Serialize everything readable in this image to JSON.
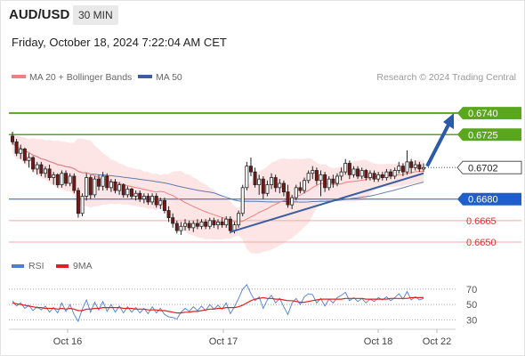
{
  "header": {
    "pair": "AUD/USD",
    "timeframe": "30 MIN",
    "datetime": "Friday, October 18, 2024 7:22:04 AM CET"
  },
  "legend": {
    "ma20": "MA 20 + Bollinger Bands",
    "ma50": "MA 50",
    "credit": "Research © 2024 Trading Central"
  },
  "colors": {
    "green": "#5aa61c",
    "blue": "#1f5fcc",
    "red": "#e03030",
    "ma20": "#f08080",
    "ma50": "#3b5f9e",
    "bollinger": "#fde0e0",
    "rsi": "#4a7fd8",
    "rsi_ma": "#e02020",
    "up_candle": "#ffffff",
    "down_candle": "#7a1515"
  },
  "chart_data": {
    "type": "candlestick",
    "price_panel": {
      "ylim": [
        0.6645,
        0.676
      ],
      "levels": [
        {
          "value": 0.674,
          "label": "0.6740",
          "kind": "resistance",
          "style": "thick-green"
        },
        {
          "value": 0.6725,
          "label": "0.6725",
          "kind": "resistance",
          "style": "green"
        },
        {
          "value": 0.6702,
          "label": "0.6702",
          "kind": "last-price",
          "style": "dotted"
        },
        {
          "value": 0.668,
          "label": "0.6680",
          "kind": "pivot",
          "style": "blue"
        },
        {
          "value": 0.6665,
          "label": "0.6665",
          "kind": "support",
          "style": "red"
        },
        {
          "value": 0.665,
          "label": "0.6650",
          "kind": "support",
          "style": "red"
        }
      ],
      "candles": [
        [
          0.6724,
          0.6727,
          0.6718,
          0.672
        ],
        [
          0.672,
          0.6722,
          0.671,
          0.6712
        ],
        [
          0.6712,
          0.6718,
          0.6708,
          0.6715
        ],
        [
          0.6715,
          0.6716,
          0.6705,
          0.6707
        ],
        [
          0.6707,
          0.6712,
          0.6702,
          0.6709
        ],
        [
          0.6709,
          0.671,
          0.6699,
          0.6701
        ],
        [
          0.6701,
          0.6706,
          0.6697,
          0.6704
        ],
        [
          0.6704,
          0.6706,
          0.6696,
          0.6698
        ],
        [
          0.6698,
          0.6703,
          0.6695,
          0.6701
        ],
        [
          0.6701,
          0.6704,
          0.6693,
          0.6695
        ],
        [
          0.6695,
          0.6699,
          0.669,
          0.6697
        ],
        [
          0.6697,
          0.6698,
          0.6688,
          0.669
        ],
        [
          0.669,
          0.67,
          0.6688,
          0.6698
        ],
        [
          0.6698,
          0.67,
          0.6689,
          0.6691
        ],
        [
          0.6691,
          0.6698,
          0.6689,
          0.6696
        ],
        [
          0.6696,
          0.6698,
          0.6684,
          0.6686
        ],
        [
          0.6686,
          0.6688,
          0.6667,
          0.667
        ],
        [
          0.667,
          0.6684,
          0.6668,
          0.6682
        ],
        [
          0.6682,
          0.6698,
          0.6679,
          0.6695
        ],
        [
          0.6695,
          0.6697,
          0.668,
          0.6683
        ],
        [
          0.6683,
          0.6696,
          0.6681,
          0.6694
        ],
        [
          0.6694,
          0.6697,
          0.6686,
          0.6689
        ],
        [
          0.6689,
          0.6699,
          0.6686,
          0.6696
        ],
        [
          0.6696,
          0.6698,
          0.6686,
          0.6688
        ],
        [
          0.6688,
          0.6694,
          0.6685,
          0.6692
        ],
        [
          0.6692,
          0.6694,
          0.6684,
          0.6686
        ],
        [
          0.6686,
          0.6692,
          0.6683,
          0.669
        ],
        [
          0.669,
          0.6691,
          0.6681,
          0.6683
        ],
        [
          0.6683,
          0.6689,
          0.6681,
          0.6687
        ],
        [
          0.6687,
          0.6688,
          0.668,
          0.6682
        ],
        [
          0.6682,
          0.6686,
          0.6679,
          0.6684
        ],
        [
          0.6684,
          0.6686,
          0.6678,
          0.668
        ],
        [
          0.668,
          0.6684,
          0.6677,
          0.6682
        ],
        [
          0.6682,
          0.6684,
          0.6676,
          0.6678
        ],
        [
          0.6678,
          0.6684,
          0.6676,
          0.6682
        ],
        [
          0.6682,
          0.6684,
          0.6674,
          0.6676
        ],
        [
          0.6676,
          0.6681,
          0.6673,
          0.6679
        ],
        [
          0.6679,
          0.6681,
          0.667,
          0.6672
        ],
        [
          0.6672,
          0.6675,
          0.6664,
          0.6667
        ],
        [
          0.6667,
          0.667,
          0.666,
          0.6663
        ],
        [
          0.6663,
          0.6665,
          0.6656,
          0.6658
        ],
        [
          0.6658,
          0.6664,
          0.6655,
          0.6661
        ],
        [
          0.6661,
          0.6666,
          0.6658,
          0.6663
        ],
        [
          0.6663,
          0.6665,
          0.6658,
          0.666
        ],
        [
          0.666,
          0.6665,
          0.6657,
          0.6663
        ],
        [
          0.6663,
          0.6666,
          0.6659,
          0.6661
        ],
        [
          0.6661,
          0.6666,
          0.6659,
          0.6664
        ],
        [
          0.6664,
          0.6666,
          0.6659,
          0.6661
        ],
        [
          0.6661,
          0.6667,
          0.6659,
          0.6665
        ],
        [
          0.6665,
          0.6667,
          0.666,
          0.6662
        ],
        [
          0.6662,
          0.6666,
          0.6659,
          0.6664
        ],
        [
          0.6664,
          0.6667,
          0.666,
          0.6662
        ],
        [
          0.6662,
          0.6668,
          0.666,
          0.6666
        ],
        [
          0.6666,
          0.6668,
          0.6656,
          0.6658
        ],
        [
          0.6658,
          0.6664,
          0.6656,
          0.6662
        ],
        [
          0.6662,
          0.6672,
          0.666,
          0.667
        ],
        [
          0.667,
          0.669,
          0.6668,
          0.6688
        ],
        [
          0.6688,
          0.6706,
          0.6686,
          0.6703
        ],
        [
          0.6703,
          0.6709,
          0.6696,
          0.6699
        ],
        [
          0.6699,
          0.6702,
          0.6688,
          0.669
        ],
        [
          0.669,
          0.6697,
          0.6683,
          0.6694
        ],
        [
          0.6694,
          0.6696,
          0.668,
          0.6684
        ],
        [
          0.6684,
          0.6693,
          0.6682,
          0.669
        ],
        [
          0.669,
          0.6698,
          0.6687,
          0.6695
        ],
        [
          0.6695,
          0.6697,
          0.6685,
          0.6688
        ],
        [
          0.6688,
          0.6694,
          0.6684,
          0.6691
        ],
        [
          0.6691,
          0.6693,
          0.6682,
          0.6685
        ],
        [
          0.6685,
          0.669,
          0.6674,
          0.6676
        ],
        [
          0.6676,
          0.6683,
          0.6673,
          0.6681
        ],
        [
          0.6681,
          0.669,
          0.6679,
          0.6688
        ],
        [
          0.6688,
          0.6692,
          0.6684,
          0.6686
        ],
        [
          0.6686,
          0.6695,
          0.6684,
          0.6693
        ],
        [
          0.6693,
          0.67,
          0.6691,
          0.6698
        ],
        [
          0.6698,
          0.6703,
          0.6694,
          0.67
        ],
        [
          0.67,
          0.6702,
          0.669,
          0.6693
        ],
        [
          0.6693,
          0.67,
          0.6682,
          0.6697
        ],
        [
          0.6697,
          0.6699,
          0.6685,
          0.6688
        ],
        [
          0.6688,
          0.6696,
          0.6686,
          0.6694
        ],
        [
          0.6694,
          0.6697,
          0.6688,
          0.6691
        ],
        [
          0.6691,
          0.6698,
          0.6689,
          0.6696
        ],
        [
          0.6696,
          0.6702,
          0.6693,
          0.6699
        ],
        [
          0.6699,
          0.6708,
          0.6697,
          0.6705
        ],
        [
          0.6705,
          0.6707,
          0.6694,
          0.6697
        ],
        [
          0.6697,
          0.6703,
          0.6695,
          0.6701
        ],
        [
          0.6701,
          0.6703,
          0.6694,
          0.6696
        ],
        [
          0.6696,
          0.6702,
          0.6694,
          0.67
        ],
        [
          0.67,
          0.6701,
          0.6693,
          0.6695
        ],
        [
          0.6695,
          0.67,
          0.6693,
          0.6698
        ],
        [
          0.6698,
          0.67,
          0.6692,
          0.6694
        ],
        [
          0.6694,
          0.6699,
          0.6692,
          0.6697
        ],
        [
          0.6697,
          0.6699,
          0.6693,
          0.6695
        ],
        [
          0.6695,
          0.6701,
          0.6693,
          0.6699
        ],
        [
          0.6699,
          0.6701,
          0.6694,
          0.6696
        ],
        [
          0.6696,
          0.6702,
          0.6694,
          0.67
        ],
        [
          0.67,
          0.6706,
          0.6698,
          0.6703
        ],
        [
          0.6703,
          0.6705,
          0.6696,
          0.6699
        ],
        [
          0.6699,
          0.6714,
          0.6697,
          0.6706
        ],
        [
          0.6706,
          0.6708,
          0.6698,
          0.6702
        ],
        [
          0.6702,
          0.6707,
          0.67,
          0.6704
        ],
        [
          0.6704,
          0.6706,
          0.6699,
          0.6701
        ],
        [
          0.6701,
          0.6705,
          0.6699,
          0.6702
        ]
      ],
      "annotations": [
        "rising trendline from Oct 17 low",
        "upward arrow targeting 0.6740"
      ]
    },
    "rsi_panel": {
      "series": [
        {
          "name": "RSI",
          "values": [
            55,
            48,
            52,
            45,
            49,
            42,
            47,
            43,
            48,
            40,
            46,
            39,
            52,
            41,
            50,
            37,
            28,
            44,
            56,
            40,
            53,
            43,
            54,
            41,
            50,
            40,
            48,
            39,
            47,
            40,
            46,
            39,
            45,
            38,
            47,
            39,
            45,
            37,
            34,
            33,
            31,
            40,
            45,
            41,
            47,
            42,
            48,
            42,
            50,
            44,
            49,
            44,
            52,
            38,
            47,
            58,
            70,
            76,
            64,
            55,
            60,
            45,
            56,
            62,
            52,
            58,
            47,
            37,
            52,
            58,
            50,
            60,
            64,
            63,
            52,
            58,
            48,
            57,
            52,
            59,
            62,
            66,
            55,
            59,
            54,
            58,
            52,
            57,
            54,
            59,
            56,
            60,
            55,
            59,
            64,
            57,
            67,
            56,
            60,
            56,
            58
          ]
        },
        {
          "name": "9MA",
          "values": [
            52,
            51,
            50,
            49,
            48,
            47,
            46,
            46,
            45,
            45,
            45,
            44,
            45,
            44,
            45,
            44,
            42,
            42,
            44,
            44,
            45,
            45,
            46,
            46,
            46,
            46,
            46,
            45,
            45,
            45,
            44,
            44,
            44,
            43,
            43,
            43,
            42,
            42,
            41,
            40,
            39,
            39,
            40,
            40,
            41,
            41,
            42,
            43,
            44,
            44,
            45,
            45,
            46,
            46,
            46,
            47,
            49,
            52,
            55,
            57,
            58,
            59,
            58,
            58,
            57,
            57,
            56,
            55,
            55,
            54,
            53,
            53,
            54,
            55,
            56,
            57,
            57,
            57,
            57,
            57,
            57,
            58,
            58,
            58,
            58,
            58,
            57,
            57,
            57,
            57,
            57,
            57,
            58,
            58,
            58,
            58,
            58,
            59,
            59,
            59,
            59
          ]
        }
      ],
      "ylim": [
        20,
        85
      ],
      "ticks": [
        "70",
        "50",
        "30"
      ],
      "legend": [
        "RSI",
        "9MA"
      ]
    },
    "x_ticks": [
      "Oct 16",
      "Oct 17",
      "Oct 18",
      "Oct 22"
    ]
  }
}
